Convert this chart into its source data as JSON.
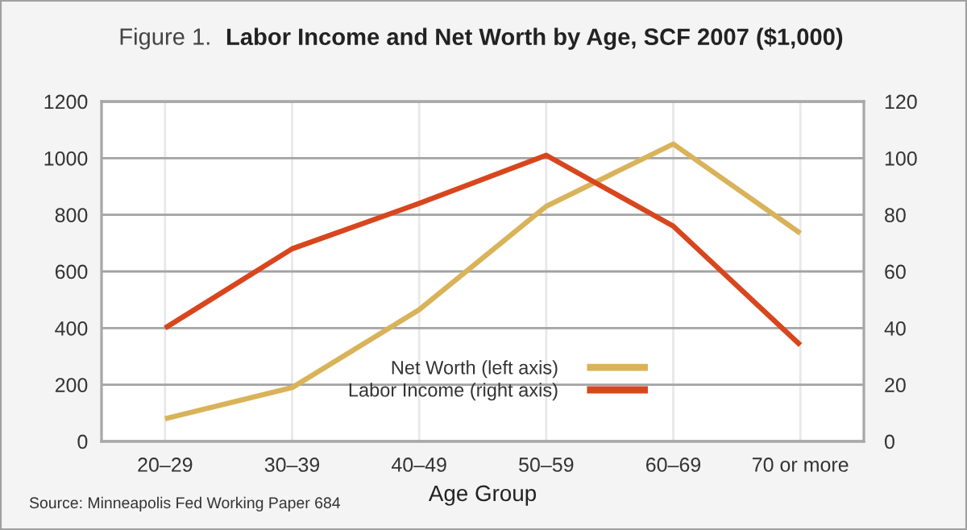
{
  "chart_data": {
    "type": "line",
    "title": "Figure 1.  Labor Income and Net Worth by Age, SCF 2007 ($1,000)",
    "xlabel": "Age Group",
    "annotations": [
      "Source: Minneapolis Fed Working Paper 684"
    ],
    "categories": [
      "20–29",
      "30–39",
      "40–49",
      "50–59",
      "60–69",
      "70 or more"
    ],
    "series": [
      {
        "name": "Net Worth (left axis)",
        "color": "#d9b35a",
        "values": [
          80,
          190,
          465,
          830,
          1050,
          735
        ]
      },
      {
        "name": "Labor Income (right axis)",
        "color": "#d8461e",
        "axis": "y2",
        "values": [
          40,
          68,
          84,
          101,
          76,
          34
        ]
      }
    ],
    "ylim": [
      0,
      1200
    ],
    "yticks": [
      0,
      200,
      400,
      600,
      800,
      1000,
      1200
    ],
    "y2lim": [
      0,
      120
    ],
    "y2ticks": [
      0,
      20,
      40,
      60,
      80,
      100,
      120
    ],
    "grid": true,
    "legend": "bottom",
    "line_style": "solid"
  }
}
